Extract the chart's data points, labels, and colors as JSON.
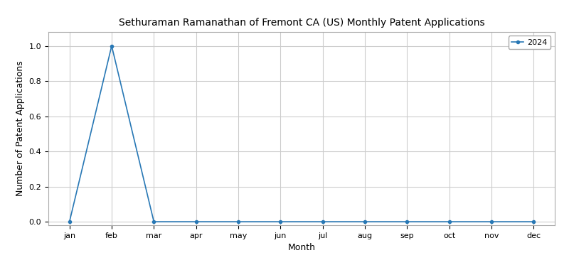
{
  "title": "Sethuraman Ramanathan of Fremont CA (US) Monthly Patent Applications",
  "xlabel": "Month",
  "ylabel": "Number of Patent Applications",
  "legend_label": "2024",
  "months": [
    "jan",
    "feb",
    "mar",
    "apr",
    "may",
    "jun",
    "jul",
    "aug",
    "sep",
    "oct",
    "nov",
    "dec"
  ],
  "values": [
    0,
    1,
    0,
    0,
    0,
    0,
    0,
    0,
    0,
    0,
    0,
    0
  ],
  "line_color": "#2878b5",
  "marker": "o",
  "marker_size": 3,
  "ylim": [
    -0.02,
    1.08
  ],
  "grid_color": "#cccccc",
  "background_color": "#ffffff",
  "title_fontsize": 10,
  "axis_label_fontsize": 9,
  "tick_fontsize": 8,
  "legend_fontsize": 8
}
